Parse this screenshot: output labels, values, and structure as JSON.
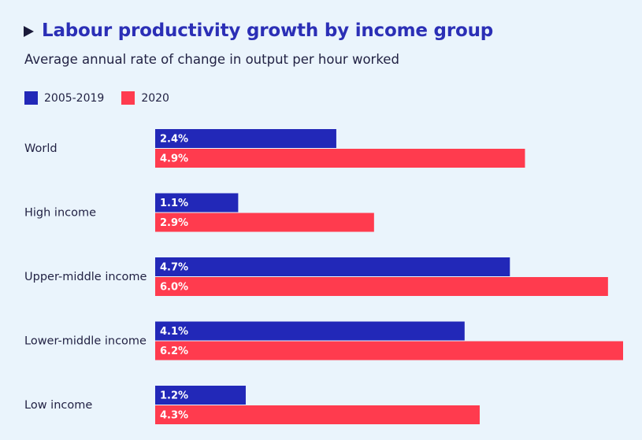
{
  "title": "Labour productivity growth by income group",
  "subtitle": "Average annual rate of change in output per hour worked",
  "colors": {
    "series1": "#2228b8",
    "series2": "#ff3b4e",
    "text": "#222244",
    "title": "#2b2fb6"
  },
  "chart_data": {
    "type": "bar",
    "orientation": "horizontal",
    "title": "Labour productivity growth by income group",
    "subtitle": "Average annual rate of change in output per hour worked",
    "categories": [
      "World",
      "High income",
      "Upper-middle income",
      "Lower-middle income",
      "Low income"
    ],
    "series": [
      {
        "name": "2005-2019",
        "values": [
          2.4,
          1.1,
          4.7,
          4.1,
          1.2
        ],
        "labels": [
          "2.4%",
          "1.1%",
          "4.7%",
          "4.1%",
          "1.2%"
        ],
        "color": "#2228b8"
      },
      {
        "name": "2020",
        "values": [
          4.9,
          2.9,
          6.0,
          6.2,
          4.3
        ],
        "labels": [
          "4.9%",
          "2.9%",
          "6.0%",
          "6.2%",
          "4.3%"
        ],
        "color": "#ff3b4e"
      }
    ],
    "xlim": [
      0,
      6.2
    ],
    "grid": false,
    "legend": "top-left"
  }
}
